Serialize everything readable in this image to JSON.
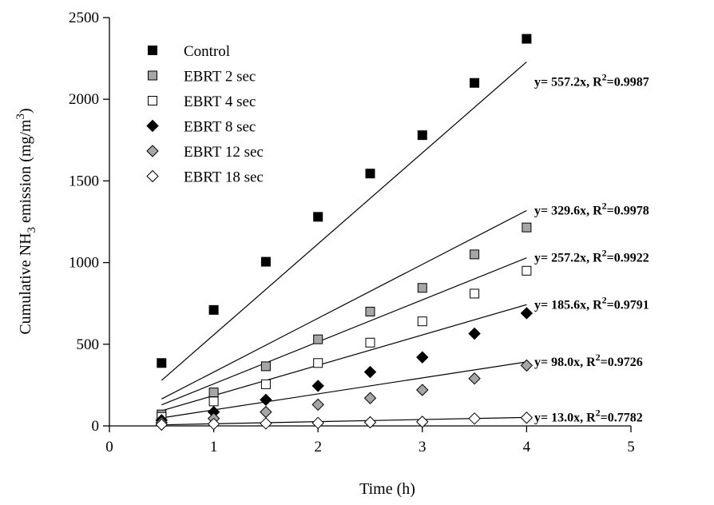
{
  "chart_data": {
    "type": "scatter",
    "xlabel": "Time (h)",
    "ylabel": "Cumulative NH3 emission (mg/m3)",
    "ylabel_parts": {
      "pre": "Cumulative NH",
      "sub": "3",
      "mid": " emission (mg/m",
      "sup": "3",
      "post": ")"
    },
    "xlim": [
      0,
      5
    ],
    "ylim": [
      0,
      2500
    ],
    "xticks": [
      0,
      1,
      2,
      3,
      4,
      5
    ],
    "yticks": [
      0,
      500,
      1000,
      1500,
      2000,
      2500
    ],
    "grid": false,
    "legend_position": "top-left",
    "x": [
      0.5,
      1,
      1.5,
      2,
      2.5,
      3,
      3.5,
      4
    ],
    "series": [
      {
        "name": "Control",
        "marker": "square",
        "fill": "#000000",
        "slope": 557.2,
        "r2": "0.9987",
        "values": [
          385,
          710,
          1005,
          1280,
          1545,
          1780,
          2100,
          2370
        ]
      },
      {
        "name": "EBRT 2 sec",
        "marker": "square",
        "fill": "#a6a6a6",
        "slope": 329.6,
        "r2": "0.9978",
        "values": [
          70,
          205,
          365,
          530,
          700,
          845,
          1050,
          1215
        ]
      },
      {
        "name": "EBRT 4 sec",
        "marker": "square",
        "fill": "#ffffff",
        "slope": 257.2,
        "r2": "0.9922",
        "values": [
          55,
          150,
          255,
          385,
          510,
          640,
          810,
          950
        ]
      },
      {
        "name": "EBRT 8 sec",
        "marker": "diamond",
        "fill": "#000000",
        "slope": 185.6,
        "r2": "0.9791",
        "values": [
          35,
          85,
          160,
          245,
          330,
          420,
          565,
          690
        ]
      },
      {
        "name": "EBRT 12 sec",
        "marker": "diamond",
        "fill": "#a6a6a6",
        "slope": 98.0,
        "r2": "0.9726",
        "values": [
          20,
          45,
          85,
          130,
          170,
          220,
          290,
          370
        ]
      },
      {
        "name": "EBRT 18 sec",
        "marker": "diamond",
        "fill": "#ffffff",
        "slope": 13.0,
        "r2": "0.7782",
        "values": [
          8,
          12,
          15,
          18,
          22,
          25,
          45,
          50
        ]
      }
    ],
    "annotations": [
      {
        "series": "Control",
        "prefix": "y= 557.2x, R",
        "sup": "2",
        "suffix": "=0.9987"
      },
      {
        "series": "EBRT 2 sec",
        "prefix": "y= 329.6x, R",
        "sup": "2",
        "suffix": "=0.9978"
      },
      {
        "series": "EBRT 4 sec",
        "prefix": "y= 257.2x, R",
        "sup": "2",
        "suffix": "=0.9922"
      },
      {
        "series": "EBRT 8 sec",
        "prefix": "y= 185.6x, R",
        "sup": "2",
        "suffix": "=0.9791"
      },
      {
        "series": "EBRT 12 sec",
        "prefix": "y= 98.0x, R",
        "sup": "2",
        "suffix": "=0.9726"
      },
      {
        "series": "EBRT 18 sec",
        "prefix": "y= 13.0x, R",
        "sup": "2",
        "suffix": "=0.7782"
      }
    ]
  }
}
